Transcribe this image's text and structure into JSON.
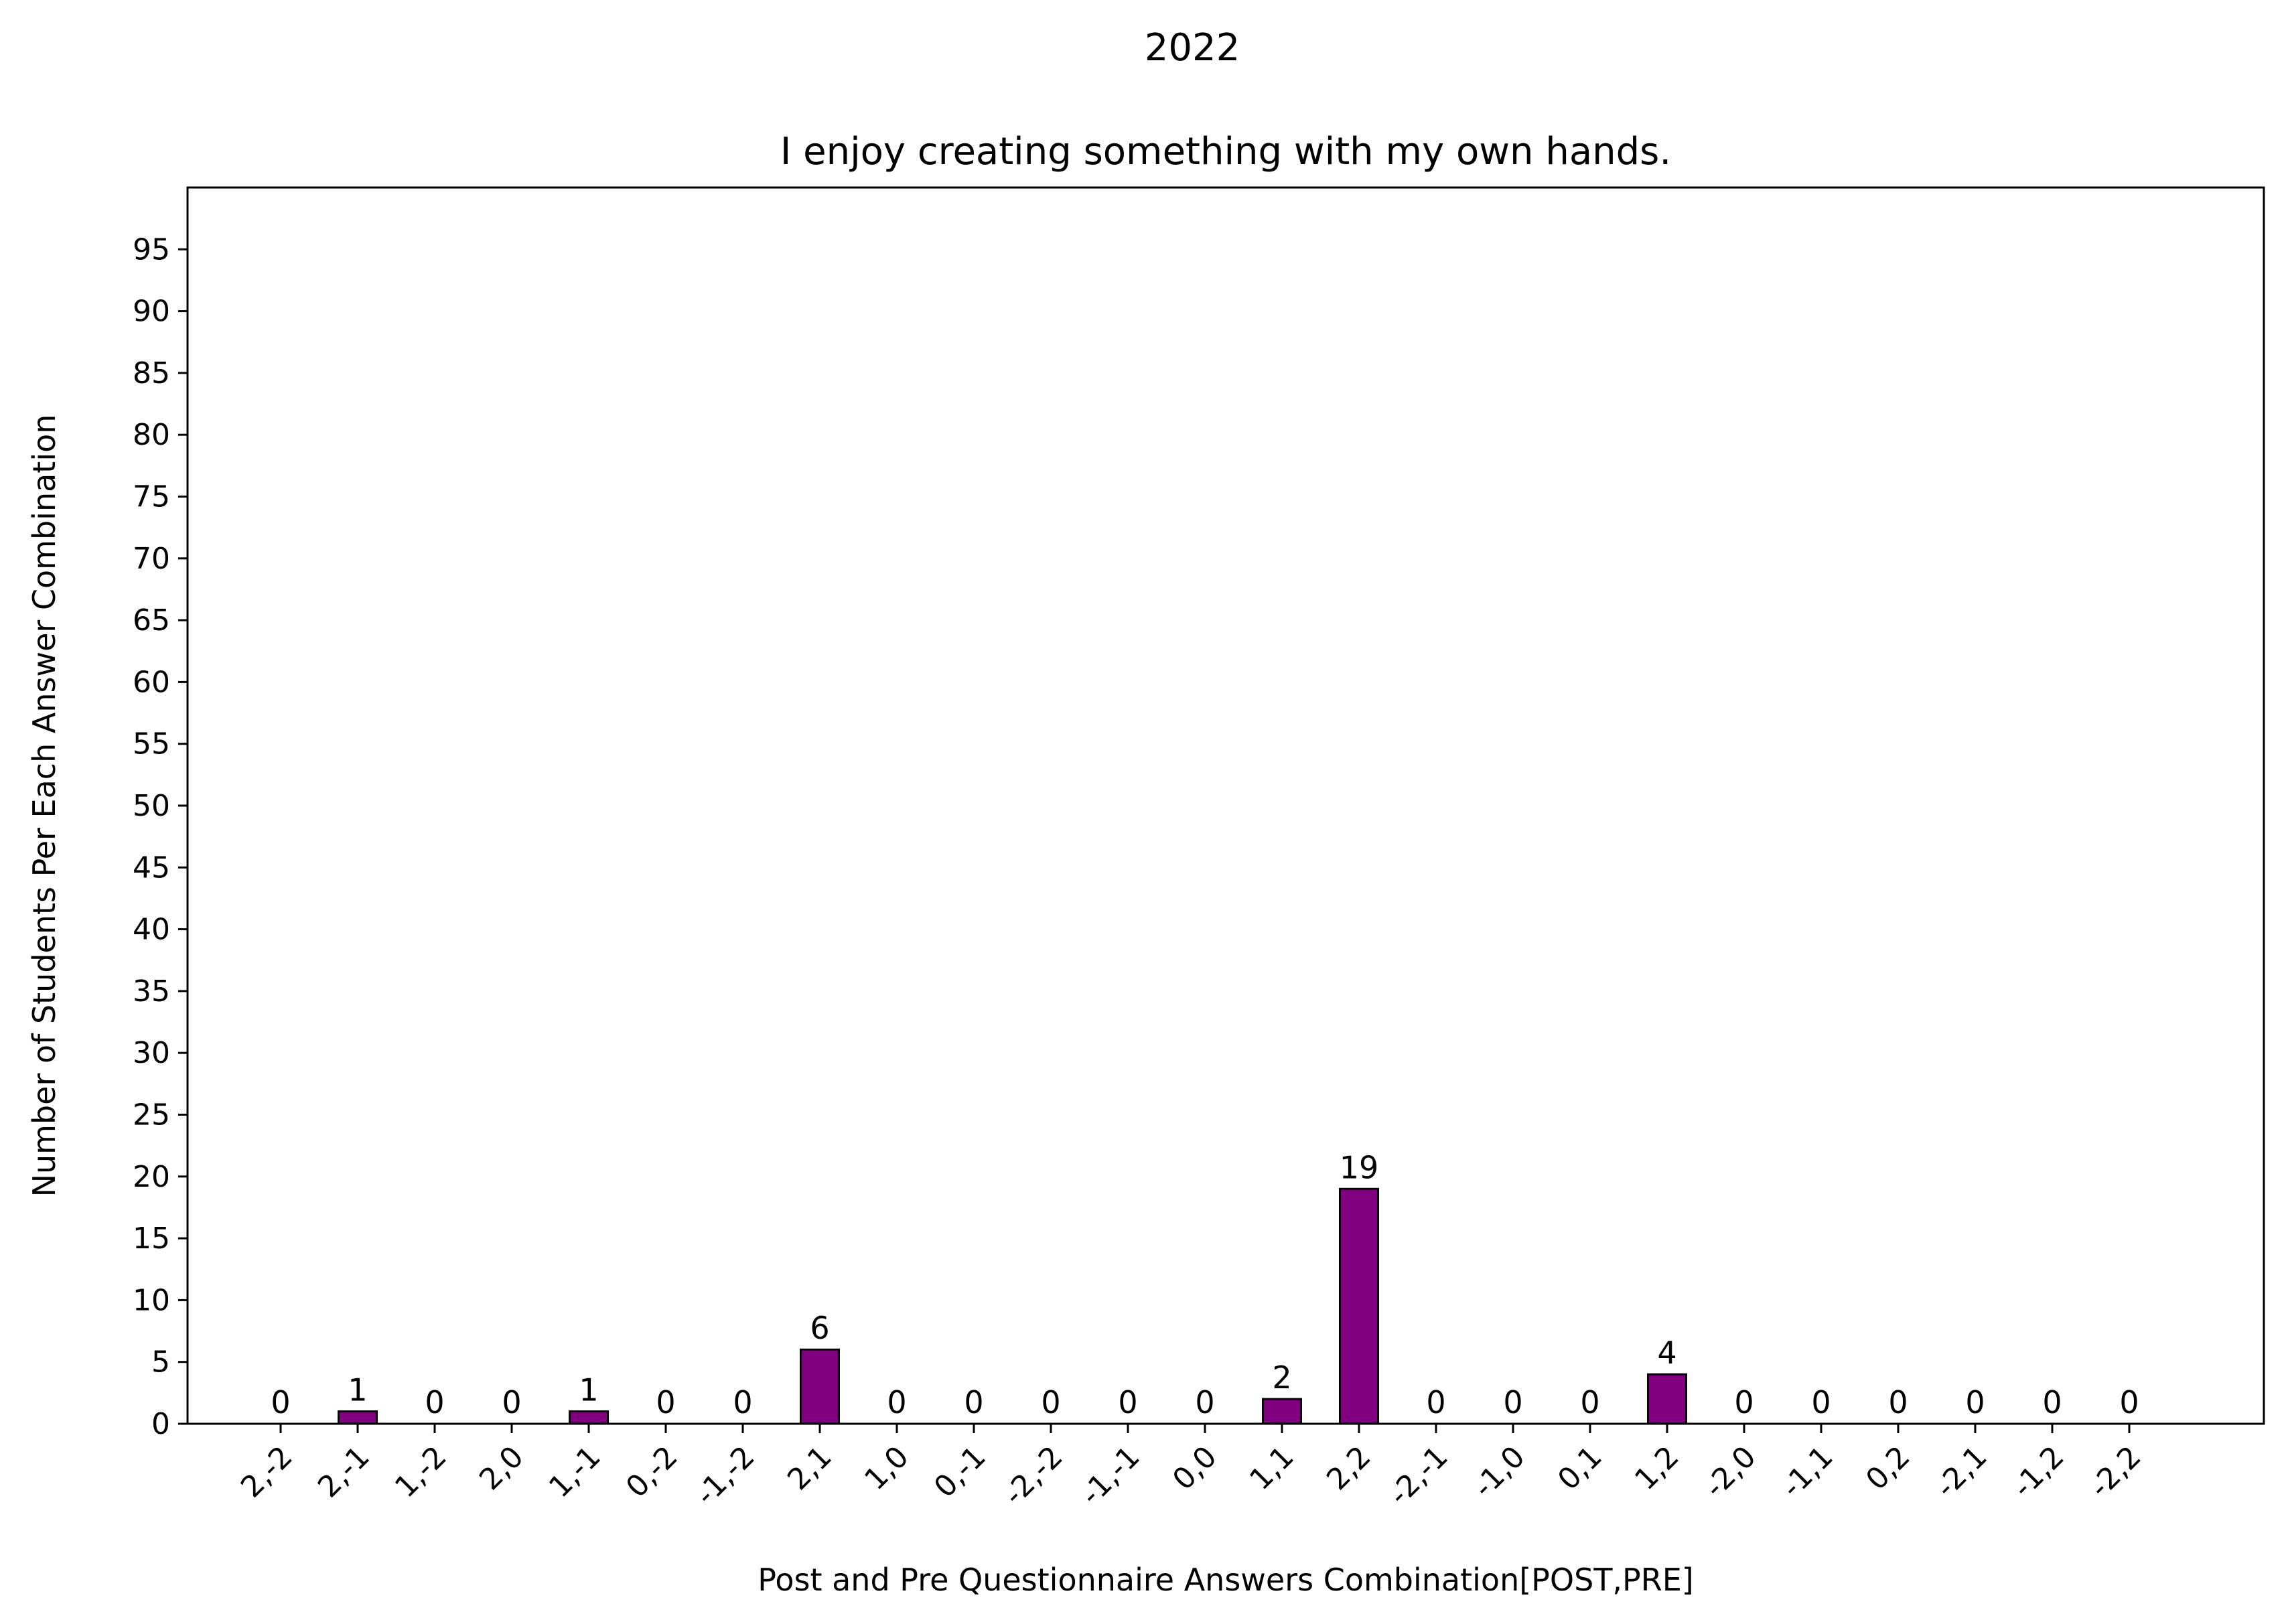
{
  "chart_data": {
    "type": "bar",
    "suptitle": "2022",
    "title": "I enjoy creating something with my own hands.",
    "xlabel": "Post and Pre Questionnaire Answers Combination[POST,PRE]",
    "ylabel": "Number of Students Per Each Answer Combination",
    "categories": [
      "2,-2",
      "2,-1",
      "1,-2",
      "2,0",
      "1,-1",
      "0,-2",
      "-1,-2",
      "2,1",
      "1,0",
      "0,-1",
      "-2,-2",
      "-1,-1",
      "0,0",
      "1,1",
      "2,2",
      "-2,-1",
      "-1,0",
      "0,1",
      "1,2",
      "-2,0",
      "-1,1",
      "0,2",
      "-2,1",
      "-1,2",
      "-2,2"
    ],
    "values": [
      0,
      1,
      0,
      0,
      1,
      0,
      0,
      6,
      0,
      0,
      0,
      0,
      0,
      2,
      19,
      0,
      0,
      0,
      4,
      0,
      0,
      0,
      0,
      0,
      0
    ],
    "ylim": [
      0,
      100
    ],
    "yticks": [
      0,
      5,
      10,
      15,
      20,
      25,
      30,
      35,
      40,
      45,
      50,
      55,
      60,
      65,
      70,
      75,
      80,
      85,
      90,
      95
    ],
    "bar_color": "#800080",
    "edge_color": "#000000",
    "grid": false,
    "legend": "none"
  }
}
